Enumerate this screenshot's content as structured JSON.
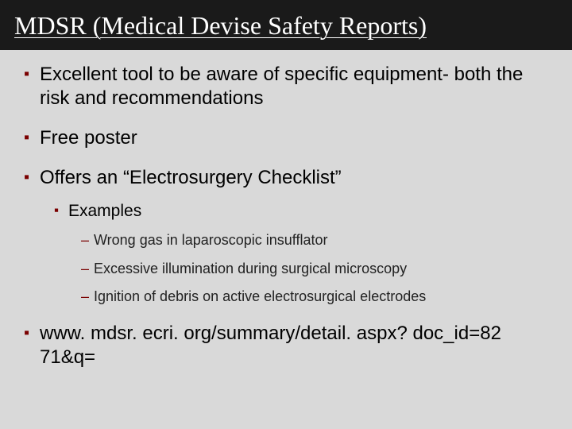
{
  "title": "MDSR (Medical Devise Safety Reports)",
  "bullets": [
    {
      "text": "Excellent tool to be aware of specific equipment- both the risk and recommendations"
    },
    {
      "text": "Free poster"
    },
    {
      "text": "Offers an “Electrosurgery Checklist”",
      "children": [
        {
          "text": "Examples",
          "children": [
            {
              "text": "Wrong gas in laparoscopic insufflator"
            },
            {
              "text": "Excessive illumination during surgical microscopy"
            },
            {
              "text": "Ignition of debris on active electrosurgical electrodes"
            }
          ]
        }
      ]
    },
    {
      "text": "www. mdsr. ecri. org/summary/detail. aspx? doc_id=82 71&q="
    }
  ],
  "colors": {
    "background": "#d9d9d9",
    "title_bg": "#1a1a1a",
    "title_fg": "#ffffff",
    "bullet_marker": "#7a0000",
    "text": "#000000"
  },
  "fonts": {
    "title_family": "Georgia, Times New Roman, serif",
    "title_size_pt": 24,
    "body_family": "Arial, Helvetica, sans-serif",
    "lvl1_size_pt": 18,
    "lvl2_size_pt": 16,
    "lvl3_size_pt": 14
  }
}
